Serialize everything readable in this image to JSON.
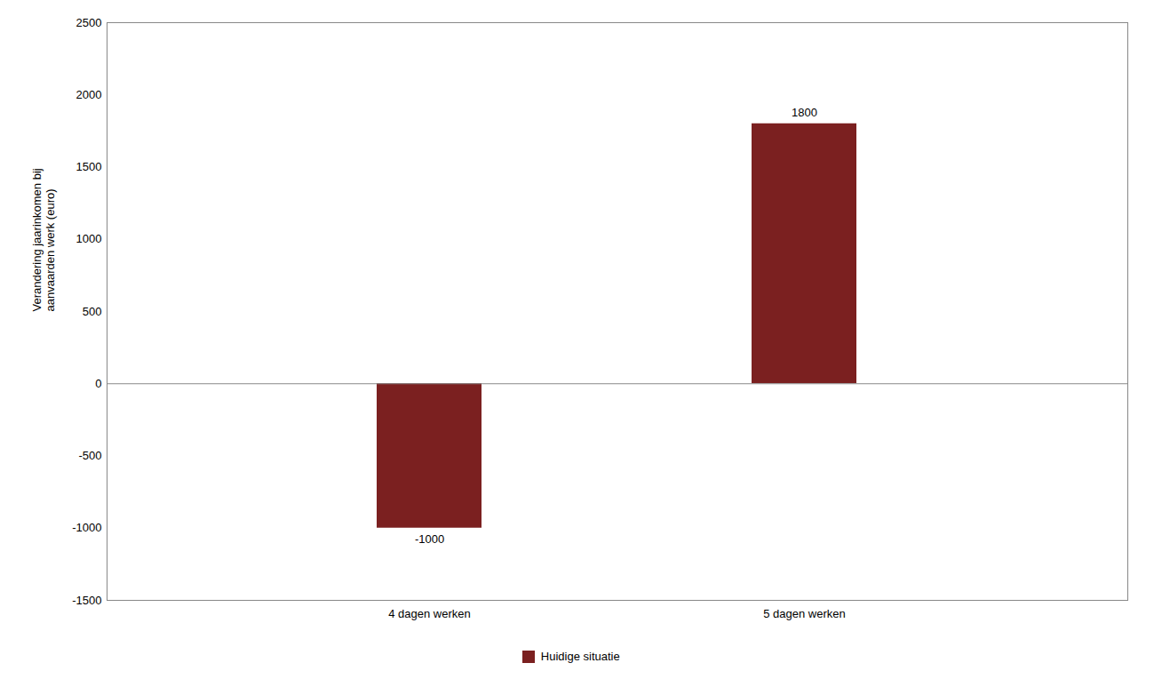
{
  "chart_data": {
    "type": "bar",
    "categories": [
      "4 dagen werken",
      "5 dagen werken"
    ],
    "series": [
      {
        "name": "Huidige situatie",
        "color": "#7B2020",
        "values": [
          -1000,
          1800
        ]
      }
    ],
    "ylabel": "Verandering jaarinkomen bij\naanvaarden werk (euro)",
    "ylim": [
      -1500,
      2500
    ],
    "yticks": [
      -1500,
      -1000,
      -500,
      0,
      500,
      1000,
      1500,
      2000,
      2500
    ],
    "grid": false,
    "data_labels": true,
    "legend": "bottom"
  }
}
